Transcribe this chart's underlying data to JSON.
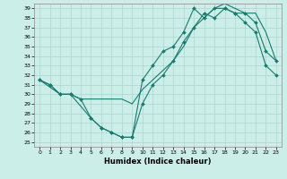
{
  "xlabel": "Humidex (Indice chaleur)",
  "xlim": [
    -0.5,
    23.5
  ],
  "ylim": [
    24.5,
    39.5
  ],
  "xticks": [
    0,
    1,
    2,
    3,
    4,
    5,
    6,
    7,
    8,
    9,
    10,
    11,
    12,
    13,
    14,
    15,
    16,
    17,
    18,
    19,
    20,
    21,
    22,
    23
  ],
  "yticks": [
    25,
    26,
    27,
    28,
    29,
    30,
    31,
    32,
    33,
    34,
    35,
    36,
    37,
    38,
    39
  ],
  "background_color": "#cceee8",
  "line_color": "#1a7a6e",
  "grid_color": "#aad6d0",
  "line1_x": [
    0,
    2,
    3,
    4,
    5,
    6,
    7,
    8,
    9,
    10,
    11,
    12,
    13,
    14,
    15,
    16,
    17,
    18,
    19,
    20,
    21,
    22,
    23
  ],
  "line1_y": [
    31.5,
    30.0,
    30.0,
    29.5,
    29.5,
    29.5,
    29.5,
    29.5,
    29.0,
    30.5,
    31.5,
    32.5,
    33.5,
    35.0,
    37.0,
    38.0,
    39.0,
    39.5,
    39.0,
    38.5,
    38.5,
    36.5,
    33.5
  ],
  "line2_x": [
    0,
    1,
    2,
    3,
    4,
    5,
    6,
    7,
    8,
    9,
    10,
    11,
    12,
    13,
    14,
    15,
    16,
    17,
    18,
    19,
    20,
    21,
    22,
    23
  ],
  "line2_y": [
    31.5,
    31.0,
    30.0,
    30.0,
    29.5,
    27.5,
    26.5,
    26.0,
    25.5,
    25.5,
    31.5,
    33.0,
    34.5,
    35.0,
    36.5,
    39.0,
    38.0,
    39.0,
    39.0,
    38.5,
    37.5,
    36.5,
    33.0,
    32.0
  ],
  "line3_x": [
    0,
    1,
    2,
    3,
    5,
    6,
    7,
    8,
    9,
    10,
    11,
    12,
    13,
    14,
    15,
    16,
    17,
    18,
    19,
    20,
    21,
    22,
    23
  ],
  "line3_y": [
    31.5,
    31.0,
    30.0,
    30.0,
    27.5,
    26.5,
    26.0,
    25.5,
    25.5,
    29.0,
    31.0,
    32.0,
    33.5,
    35.5,
    37.0,
    38.5,
    38.0,
    39.0,
    38.5,
    38.5,
    37.5,
    34.5,
    33.5
  ]
}
